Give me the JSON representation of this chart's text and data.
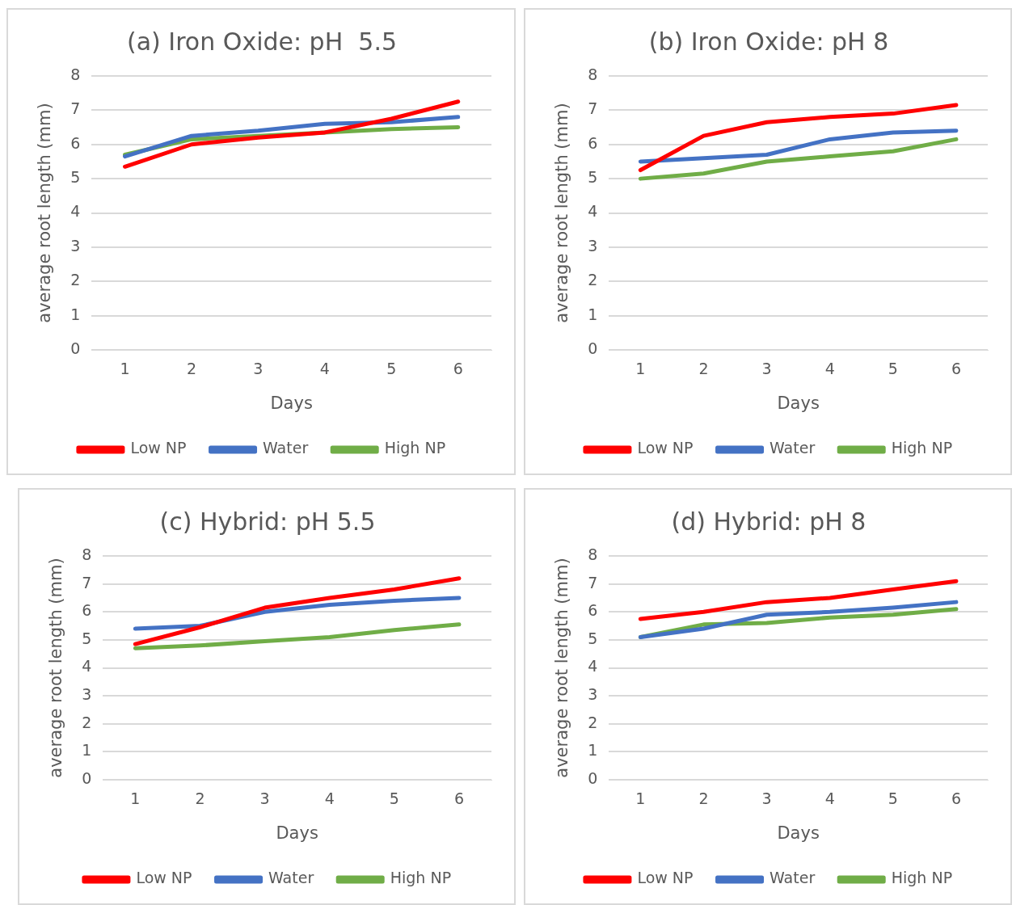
{
  "chart_data": [
    {
      "type": "line",
      "title": "(a) Iron Oxide: pH  5.5",
      "xlabel": "Days",
      "ylabel": "average root length (mm)",
      "categories": [
        "1",
        "2",
        "3",
        "4",
        "5",
        "6"
      ],
      "ylim": [
        0,
        8
      ],
      "yticks": [
        0,
        1,
        2,
        3,
        4,
        5,
        6,
        7,
        8
      ],
      "grid": "y",
      "legend": "bottom",
      "marker": "none",
      "line_style": "solid",
      "series": [
        {
          "name": "Low NP",
          "color": "#ff0000",
          "values": [
            5.35,
            6.0,
            6.2,
            6.35,
            6.75,
            7.25
          ]
        },
        {
          "name": "Water",
          "color": "#4472c4",
          "values": [
            5.65,
            6.25,
            6.4,
            6.6,
            6.65,
            6.8
          ]
        },
        {
          "name": "High NP",
          "color": "#70ad47",
          "values": [
            5.7,
            6.15,
            6.25,
            6.35,
            6.45,
            6.5
          ]
        }
      ]
    },
    {
      "type": "line",
      "title": "(b) Iron Oxide: pH 8",
      "xlabel": "Days",
      "ylabel": "average root length (mm)",
      "categories": [
        "1",
        "2",
        "3",
        "4",
        "5",
        "6"
      ],
      "ylim": [
        0,
        8
      ],
      "yticks": [
        0,
        1,
        2,
        3,
        4,
        5,
        6,
        7,
        8
      ],
      "grid": "y",
      "legend": "bottom",
      "marker": "none",
      "line_style": "solid",
      "series": [
        {
          "name": "Low NP",
          "color": "#ff0000",
          "values": [
            5.25,
            6.25,
            6.65,
            6.8,
            6.9,
            7.15
          ]
        },
        {
          "name": "Water",
          "color": "#4472c4",
          "values": [
            5.5,
            5.6,
            5.7,
            6.15,
            6.35,
            6.4
          ]
        },
        {
          "name": "High NP",
          "color": "#70ad47",
          "values": [
            5.0,
            5.15,
            5.5,
            5.65,
            5.8,
            6.15
          ]
        }
      ]
    },
    {
      "type": "line",
      "title": "(c) Hybrid: pH 5.5",
      "xlabel": "Days",
      "ylabel": "average root length (mm)",
      "categories": [
        "1",
        "2",
        "3",
        "4",
        "5",
        "6"
      ],
      "ylim": [
        0,
        8
      ],
      "yticks": [
        0,
        1,
        2,
        3,
        4,
        5,
        6,
        7,
        8
      ],
      "grid": "y",
      "legend": "bottom",
      "marker": "none",
      "line_style": "solid",
      "series": [
        {
          "name": "Low NP",
          "color": "#ff0000",
          "values": [
            4.85,
            5.45,
            6.15,
            6.5,
            6.8,
            7.2
          ]
        },
        {
          "name": "Water",
          "color": "#4472c4",
          "values": [
            5.4,
            5.5,
            6.0,
            6.25,
            6.4,
            6.5
          ]
        },
        {
          "name": "High NP",
          "color": "#70ad47",
          "values": [
            4.7,
            4.8,
            4.95,
            5.1,
            5.35,
            5.55
          ]
        }
      ]
    },
    {
      "type": "line",
      "title": "(d) Hybrid: pH 8",
      "xlabel": "Days",
      "ylabel": "average root length (mm)",
      "categories": [
        "1",
        "2",
        "3",
        "4",
        "5",
        "6"
      ],
      "ylim": [
        0,
        8
      ],
      "yticks": [
        0,
        1,
        2,
        3,
        4,
        5,
        6,
        7,
        8
      ],
      "grid": "y",
      "legend": "bottom",
      "marker": "none",
      "line_style": "solid",
      "series": [
        {
          "name": "Low NP",
          "color": "#ff0000",
          "values": [
            5.75,
            6.0,
            6.35,
            6.5,
            6.8,
            7.1
          ]
        },
        {
          "name": "Water",
          "color": "#4472c4",
          "values": [
            5.1,
            5.4,
            5.9,
            6.0,
            6.15,
            6.35
          ]
        },
        {
          "name": "High NP",
          "color": "#70ad47",
          "values": [
            5.1,
            5.55,
            5.6,
            5.8,
            5.9,
            6.1
          ]
        }
      ]
    }
  ]
}
